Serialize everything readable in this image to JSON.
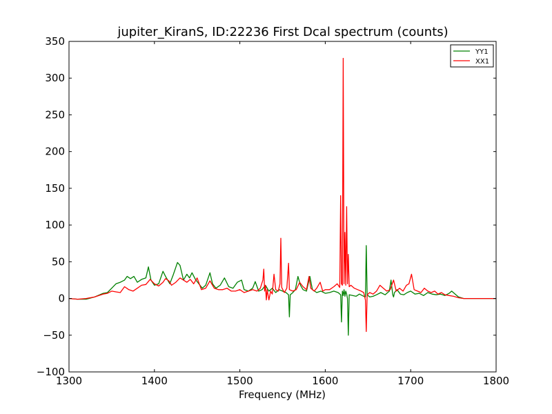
{
  "chart_data": {
    "type": "line",
    "title": "jupiter_KiranS, ID:22236 First Dcal spectrum (counts)",
    "xlabel": "Frequency (MHz)",
    "ylabel": "",
    "xlim": [
      1300,
      1800
    ],
    "ylim": [
      -100,
      350
    ],
    "xticks": [
      1300,
      1400,
      1500,
      1600,
      1700,
      1800
    ],
    "yticks": [
      -100,
      -50,
      0,
      50,
      100,
      150,
      200,
      250,
      300,
      350
    ],
    "xtick_labels": [
      "1300",
      "1400",
      "1500",
      "1600",
      "1700",
      "1800"
    ],
    "ytick_labels": [
      "−100",
      "−50",
      "0",
      "50",
      "100",
      "150",
      "200",
      "250",
      "300",
      "350"
    ],
    "grid": false,
    "legend_position": "top-right",
    "series": [
      {
        "name": "YY1",
        "color": "#008000",
        "points": [
          [
            1300,
            0
          ],
          [
            1310,
            -1
          ],
          [
            1320,
            -1
          ],
          [
            1330,
            2
          ],
          [
            1340,
            7
          ],
          [
            1345,
            8
          ],
          [
            1350,
            14
          ],
          [
            1355,
            20
          ],
          [
            1360,
            22
          ],
          [
            1365,
            25
          ],
          [
            1368,
            30
          ],
          [
            1372,
            27
          ],
          [
            1376,
            30
          ],
          [
            1380,
            22
          ],
          [
            1385,
            26
          ],
          [
            1390,
            28
          ],
          [
            1393,
            43
          ],
          [
            1396,
            25
          ],
          [
            1400,
            18
          ],
          [
            1405,
            20
          ],
          [
            1410,
            37
          ],
          [
            1413,
            30
          ],
          [
            1418,
            20
          ],
          [
            1422,
            32
          ],
          [
            1427,
            49
          ],
          [
            1430,
            45
          ],
          [
            1434,
            25
          ],
          [
            1438,
            33
          ],
          [
            1441,
            28
          ],
          [
            1444,
            35
          ],
          [
            1448,
            26
          ],
          [
            1452,
            20
          ],
          [
            1456,
            14
          ],
          [
            1460,
            18
          ],
          [
            1465,
            35
          ],
          [
            1468,
            20
          ],
          [
            1472,
            14
          ],
          [
            1477,
            18
          ],
          [
            1482,
            28
          ],
          [
            1487,
            16
          ],
          [
            1492,
            14
          ],
          [
            1497,
            22
          ],
          [
            1502,
            25
          ],
          [
            1505,
            12
          ],
          [
            1510,
            10
          ],
          [
            1515,
            14
          ],
          [
            1518,
            23
          ],
          [
            1522,
            10
          ],
          [
            1526,
            12
          ],
          [
            1530,
            18
          ],
          [
            1534,
            10
          ],
          [
            1538,
            14
          ],
          [
            1542,
            8
          ],
          [
            1546,
            12
          ],
          [
            1550,
            10
          ],
          [
            1554,
            8
          ],
          [
            1557,
            5
          ],
          [
            1558,
            -25
          ],
          [
            1559,
            5
          ],
          [
            1562,
            8
          ],
          [
            1565,
            12
          ],
          [
            1568,
            30
          ],
          [
            1571,
            18
          ],
          [
            1574,
            12
          ],
          [
            1578,
            10
          ],
          [
            1582,
            30
          ],
          [
            1585,
            12
          ],
          [
            1590,
            8
          ],
          [
            1595,
            10
          ],
          [
            1600,
            7
          ],
          [
            1605,
            8
          ],
          [
            1610,
            10
          ],
          [
            1615,
            8
          ],
          [
            1618,
            5
          ],
          [
            1619,
            -32
          ],
          [
            1620,
            10
          ],
          [
            1621,
            4
          ],
          [
            1622,
            12
          ],
          [
            1623,
            3
          ],
          [
            1624,
            10
          ],
          [
            1625,
            6
          ],
          [
            1626,
            0
          ],
          [
            1627,
            -50
          ],
          [
            1628,
            5
          ],
          [
            1632,
            4
          ],
          [
            1636,
            3
          ],
          [
            1640,
            6
          ],
          [
            1645,
            3
          ],
          [
            1647,
            2
          ],
          [
            1648,
            72
          ],
          [
            1649,
            5
          ],
          [
            1652,
            2
          ],
          [
            1656,
            3
          ],
          [
            1660,
            5
          ],
          [
            1665,
            8
          ],
          [
            1670,
            5
          ],
          [
            1675,
            10
          ],
          [
            1677,
            25
          ],
          [
            1679,
            5
          ],
          [
            1680,
            2
          ],
          [
            1681,
            8
          ],
          [
            1684,
            12
          ],
          [
            1688,
            6
          ],
          [
            1692,
            5
          ],
          [
            1696,
            8
          ],
          [
            1700,
            10
          ],
          [
            1705,
            6
          ],
          [
            1710,
            7
          ],
          [
            1715,
            4
          ],
          [
            1720,
            8
          ],
          [
            1725,
            6
          ],
          [
            1730,
            5
          ],
          [
            1735,
            6
          ],
          [
            1740,
            4
          ],
          [
            1745,
            7
          ],
          [
            1748,
            10
          ],
          [
            1752,
            6
          ],
          [
            1756,
            2
          ],
          [
            1762,
            0
          ],
          [
            1770,
            0
          ],
          [
            1780,
            0
          ],
          [
            1790,
            0
          ],
          [
            1800,
            0
          ]
        ]
      },
      {
        "name": "XX1",
        "color": "#ff0000",
        "points": [
          [
            1300,
            0
          ],
          [
            1310,
            -1
          ],
          [
            1320,
            0
          ],
          [
            1330,
            2
          ],
          [
            1340,
            6
          ],
          [
            1345,
            7
          ],
          [
            1350,
            10
          ],
          [
            1355,
            9
          ],
          [
            1360,
            8
          ],
          [
            1365,
            16
          ],
          [
            1370,
            12
          ],
          [
            1375,
            10
          ],
          [
            1380,
            14
          ],
          [
            1385,
            18
          ],
          [
            1390,
            19
          ],
          [
            1395,
            26
          ],
          [
            1400,
            20
          ],
          [
            1405,
            17
          ],
          [
            1410,
            22
          ],
          [
            1413,
            27
          ],
          [
            1417,
            24
          ],
          [
            1420,
            18
          ],
          [
            1425,
            22
          ],
          [
            1430,
            28
          ],
          [
            1434,
            25
          ],
          [
            1438,
            22
          ],
          [
            1442,
            26
          ],
          [
            1446,
            20
          ],
          [
            1450,
            28
          ],
          [
            1455,
            12
          ],
          [
            1460,
            14
          ],
          [
            1465,
            24
          ],
          [
            1470,
            14
          ],
          [
            1475,
            12
          ],
          [
            1480,
            12
          ],
          [
            1485,
            14
          ],
          [
            1490,
            10
          ],
          [
            1495,
            10
          ],
          [
            1500,
            12
          ],
          [
            1505,
            8
          ],
          [
            1510,
            10
          ],
          [
            1515,
            12
          ],
          [
            1520,
            10
          ],
          [
            1524,
            14
          ],
          [
            1527,
            25
          ],
          [
            1528,
            40
          ],
          [
            1529,
            10
          ],
          [
            1530,
            18
          ],
          [
            1531,
            -2
          ],
          [
            1532,
            12
          ],
          [
            1534,
            -2
          ],
          [
            1536,
            10
          ],
          [
            1538,
            6
          ],
          [
            1540,
            33
          ],
          [
            1542,
            12
          ],
          [
            1545,
            10
          ],
          [
            1547,
            20
          ],
          [
            1548,
            82
          ],
          [
            1549,
            15
          ],
          [
            1552,
            8
          ],
          [
            1555,
            14
          ],
          [
            1557,
            48
          ],
          [
            1558,
            12
          ],
          [
            1562,
            10
          ],
          [
            1566,
            12
          ],
          [
            1570,
            22
          ],
          [
            1574,
            16
          ],
          [
            1578,
            12
          ],
          [
            1581,
            30
          ],
          [
            1583,
            14
          ],
          [
            1587,
            10
          ],
          [
            1590,
            14
          ],
          [
            1594,
            22
          ],
          [
            1597,
            10
          ],
          [
            1600,
            12
          ],
          [
            1605,
            12
          ],
          [
            1610,
            16
          ],
          [
            1614,
            20
          ],
          [
            1617,
            15
          ],
          [
            1618,
            140
          ],
          [
            1619,
            20
          ],
          [
            1620,
            18
          ],
          [
            1621,
            327
          ],
          [
            1622,
            20
          ],
          [
            1623,
            90
          ],
          [
            1624,
            18
          ],
          [
            1625,
            125
          ],
          [
            1626,
            20
          ],
          [
            1627,
            60
          ],
          [
            1628,
            16
          ],
          [
            1630,
            18
          ],
          [
            1634,
            14
          ],
          [
            1638,
            12
          ],
          [
            1642,
            10
          ],
          [
            1645,
            8
          ],
          [
            1647,
            -2
          ],
          [
            1648,
            -45
          ],
          [
            1649,
            5
          ],
          [
            1652,
            8
          ],
          [
            1656,
            6
          ],
          [
            1660,
            10
          ],
          [
            1664,
            18
          ],
          [
            1668,
            14
          ],
          [
            1672,
            10
          ],
          [
            1676,
            12
          ],
          [
            1680,
            25
          ],
          [
            1683,
            10
          ],
          [
            1687,
            14
          ],
          [
            1691,
            10
          ],
          [
            1695,
            18
          ],
          [
            1698,
            20
          ],
          [
            1701,
            33
          ],
          [
            1704,
            12
          ],
          [
            1708,
            10
          ],
          [
            1712,
            8
          ],
          [
            1716,
            14
          ],
          [
            1720,
            10
          ],
          [
            1724,
            8
          ],
          [
            1728,
            10
          ],
          [
            1732,
            6
          ],
          [
            1736,
            8
          ],
          [
            1740,
            5
          ],
          [
            1745,
            4
          ],
          [
            1750,
            3
          ],
          [
            1756,
            1
          ],
          [
            1762,
            0
          ],
          [
            1770,
            0
          ],
          [
            1780,
            0
          ],
          [
            1790,
            0
          ],
          [
            1800,
            0
          ]
        ]
      }
    ]
  }
}
